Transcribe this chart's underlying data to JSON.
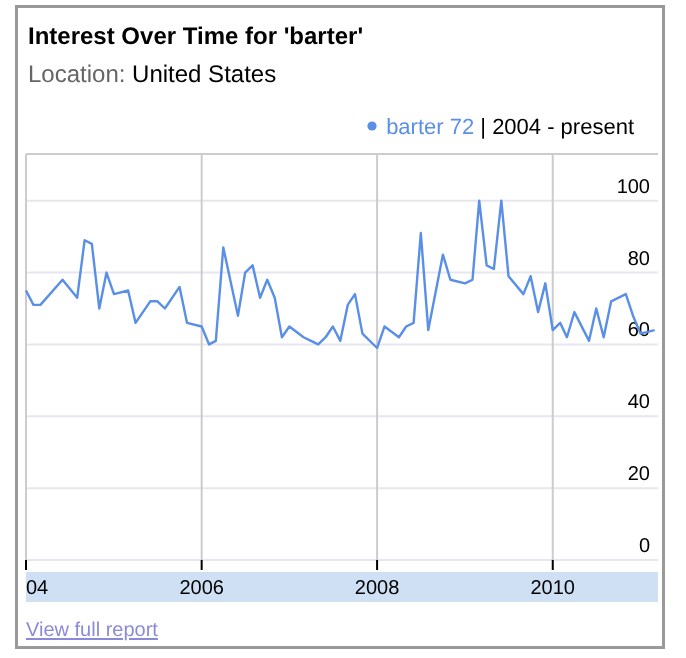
{
  "chart_data": {
    "type": "line",
    "title": "Interest Over Time for 'barter'",
    "subtitle": "Location: United States",
    "x": [
      "2004-01",
      "2004-02",
      "2004-03",
      "2004-06",
      "2004-08",
      "2004-09",
      "2004-10",
      "2004-11",
      "2004-12",
      "2005-01",
      "2005-03",
      "2005-04",
      "2005-06",
      "2005-07",
      "2005-08",
      "2005-10",
      "2005-11",
      "2006-01",
      "2006-02",
      "2006-03",
      "2006-04",
      "2006-06",
      "2006-07",
      "2006-08",
      "2006-09",
      "2006-10",
      "2006-11",
      "2006-12",
      "2007-01",
      "2007-03",
      "2007-04",
      "2007-05",
      "2007-06",
      "2007-07",
      "2007-08",
      "2007-09",
      "2007-10",
      "2007-11",
      "2008-01",
      "2008-02",
      "2008-04",
      "2008-05",
      "2008-06",
      "2008-07",
      "2008-08",
      "2008-10",
      "2008-11",
      "2009-01",
      "2009-02",
      "2009-03",
      "2009-04",
      "2009-05",
      "2009-06",
      "2009-07",
      "2009-09",
      "2009-10",
      "2009-11",
      "2009-12",
      "2010-01",
      "2010-02",
      "2010-03",
      "2010-04",
      "2010-06",
      "2010-07",
      "2010-08",
      "2010-09",
      "2010-11",
      "2010-12",
      "2011-01",
      "2011-03"
    ],
    "series": [
      {
        "name": "barter 72",
        "color": "#5a8fe8",
        "values": [
          75,
          71,
          71,
          78,
          73,
          89,
          88,
          70,
          80,
          74,
          75,
          66,
          72,
          72,
          70,
          76,
          66,
          65,
          60,
          61,
          87,
          68,
          80,
          82,
          73,
          78,
          73,
          62,
          65,
          62,
          61,
          60,
          62,
          65,
          61,
          71,
          74,
          63,
          59,
          65,
          62,
          65,
          66,
          91,
          64,
          85,
          78,
          77,
          78,
          100,
          82,
          81,
          100,
          79,
          74,
          79,
          69,
          77,
          64,
          66,
          62,
          69,
          61,
          70,
          62,
          72,
          74,
          68,
          63,
          64
        ]
      }
    ],
    "xlim": [
      "2004-01-01",
      "2011-03-15"
    ],
    "xticks": [
      {
        "value": "2004-01-01",
        "label": "04"
      },
      {
        "value": "2006-01-01",
        "label": "2006"
      },
      {
        "value": "2008-01-01",
        "label": "2008"
      },
      {
        "value": "2010-01-01",
        "label": "2010"
      }
    ],
    "ylim": [
      0,
      113
    ],
    "yticks": [
      0,
      20,
      40,
      60,
      80,
      100
    ],
    "grid": true,
    "legend": "top right",
    "marker": "none",
    "line_style": "solid",
    "annotations": [
      "| 2004 - present",
      "View full report"
    ]
  }
}
